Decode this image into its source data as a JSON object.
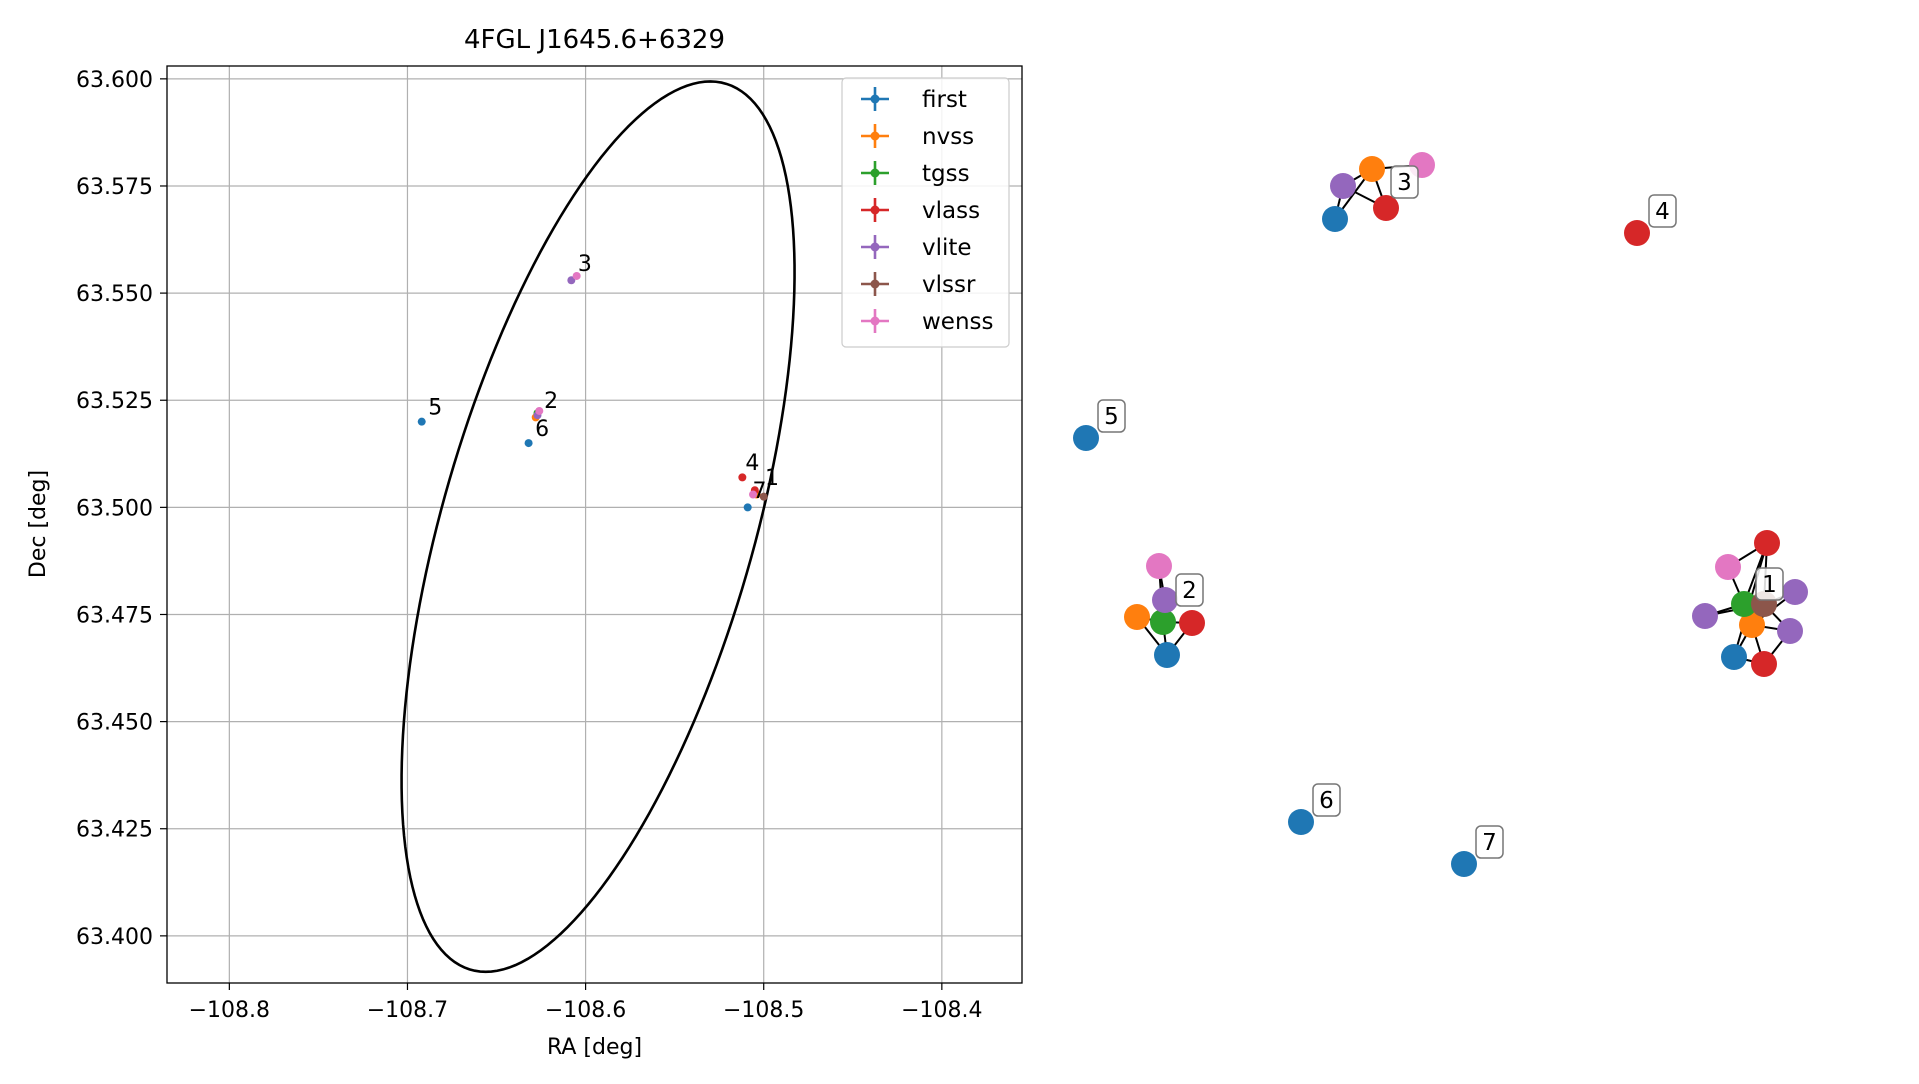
{
  "chart_data": [
    {
      "type": "scatter",
      "title": "4FGL J1645.6+6329",
      "xlabel": "RA [deg]",
      "ylabel": "Dec [deg]",
      "xlim": [
        -108.835,
        -108.355
      ],
      "ylim": [
        63.389,
        63.603
      ],
      "xticks": [
        -108.8,
        -108.7,
        -108.6,
        -108.5,
        -108.4
      ],
      "xtick_labels": [
        "−108.8",
        "−108.7",
        "−108.6",
        "−108.5",
        "−108.4"
      ],
      "yticks": [
        63.4,
        63.425,
        63.45,
        63.475,
        63.5,
        63.525,
        63.55,
        63.575,
        63.6
      ],
      "ytick_labels": [
        "63.400",
        "63.425",
        "63.450",
        "63.475",
        "63.500",
        "63.525",
        "63.550",
        "63.575",
        "63.600"
      ],
      "grid": true,
      "legend_position": "top-right",
      "colors": {
        "first": "#1f77b4",
        "nvss": "#ff7f0e",
        "tgss": "#2ca02c",
        "vlass": "#d62728",
        "vlite": "#9467bd",
        "vlssr": "#8c564b",
        "wenss": "#e377c2"
      },
      "legend": [
        "first",
        "nvss",
        "tgss",
        "vlass",
        "vlite",
        "vlssr",
        "wenss"
      ],
      "series": [
        {
          "name": "first",
          "points": [
            [
              -108.509,
              63.5
            ],
            [
              -108.692,
              63.52
            ],
            [
              -108.632,
              63.515
            ]
          ]
        },
        {
          "name": "nvss",
          "points": [
            [
              -108.628,
              63.521
            ],
            [
              -108.504,
              63.503
            ]
          ]
        },
        {
          "name": "tgss",
          "points": [
            [
              -108.627,
              63.522
            ]
          ]
        },
        {
          "name": "vlass",
          "points": [
            [
              -108.512,
              63.507
            ],
            [
              -108.505,
              63.504
            ]
          ]
        },
        {
          "name": "vlite",
          "points": [
            [
              -108.608,
              63.553
            ],
            [
              -108.627,
              63.5215
            ]
          ]
        },
        {
          "name": "vlssr",
          "points": [
            [
              -108.5,
              63.5025
            ]
          ]
        },
        {
          "name": "wenss",
          "points": [
            [
              -108.605,
              63.554
            ],
            [
              -108.506,
              63.503
            ],
            [
              -108.626,
              63.5225
            ]
          ]
        }
      ],
      "annotations": [
        {
          "text": "1",
          "x": -108.501,
          "y": 63.5045
        },
        {
          "text": "2",
          "x": -108.625,
          "y": 63.5225
        },
        {
          "text": "3",
          "x": -108.606,
          "y": 63.5545
        },
        {
          "text": "4",
          "x": -108.512,
          "y": 63.508
        },
        {
          "text": "5",
          "x": -108.69,
          "y": 63.521
        },
        {
          "text": "6",
          "x": -108.63,
          "y": 63.516
        },
        {
          "text": "7",
          "x": -108.508,
          "y": 63.5015
        }
      ],
      "ellipse": {
        "center": [
          -108.593,
          63.4955
        ],
        "semi_ra": 0.1344,
        "semi_dec": 0.07,
        "rotation_deg": 42
      }
    },
    {
      "type": "network",
      "clusters": [
        {
          "label": "1",
          "nodes": [
            "first",
            "nvss",
            "tgss",
            "vlass",
            "vlass",
            "vlite",
            "vlite",
            "vlite",
            "vlssr",
            "wenss"
          ]
        },
        {
          "label": "2",
          "nodes": [
            "first",
            "nvss",
            "tgss",
            "vlass",
            "vlite",
            "wenss"
          ]
        },
        {
          "label": "3",
          "nodes": [
            "first",
            "nvss",
            "vlass",
            "vlite",
            "wenss"
          ]
        },
        {
          "label": "4",
          "nodes": [
            "vlass"
          ]
        },
        {
          "label": "5",
          "nodes": [
            "first"
          ]
        },
        {
          "label": "6",
          "nodes": [
            "first"
          ]
        },
        {
          "label": "7",
          "nodes": [
            "first"
          ]
        }
      ]
    }
  ]
}
